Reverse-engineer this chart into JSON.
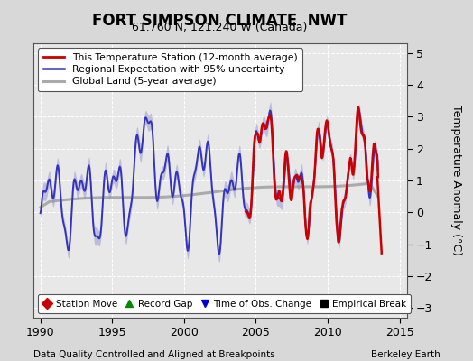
{
  "title": "FORT SIMPSON CLIMATE  NWT",
  "subtitle": "61.760 N, 121.240 W (Canada)",
  "ylabel": "Temperature Anomaly (°C)",
  "xlabel_left": "Data Quality Controlled and Aligned at Breakpoints",
  "xlabel_right": "Berkeley Earth",
  "xlim": [
    1989.5,
    2015.5
  ],
  "ylim": [
    -3.3,
    5.3
  ],
  "yticks": [
    -3,
    -2,
    -1,
    0,
    1,
    2,
    3,
    4,
    5
  ],
  "xticks": [
    1990,
    1995,
    2000,
    2005,
    2010,
    2015
  ],
  "bg_color": "#d8d8d8",
  "plot_bg_color": "#e8e8e8",
  "regional_color": "#3333bb",
  "regional_fill_color": "#8888cc",
  "station_color": "#cc0000",
  "global_color": "#aaaaaa",
  "legend_items": [
    {
      "label": "This Temperature Station (12-month average)",
      "color": "#cc0000"
    },
    {
      "label": "Regional Expectation with 95% uncertainty",
      "color": "#3333bb"
    },
    {
      "label": "Global Land (5-year average)",
      "color": "#aaaaaa"
    }
  ],
  "bottom_legend": [
    {
      "label": "Station Move",
      "marker": "D",
      "color": "#cc0000"
    },
    {
      "label": "Record Gap",
      "marker": "^",
      "color": "#008800"
    },
    {
      "label": "Time of Obs. Change",
      "marker": "v",
      "color": "#0000cc"
    },
    {
      "label": "Empirical Break",
      "marker": "s",
      "color": "#000000"
    }
  ]
}
